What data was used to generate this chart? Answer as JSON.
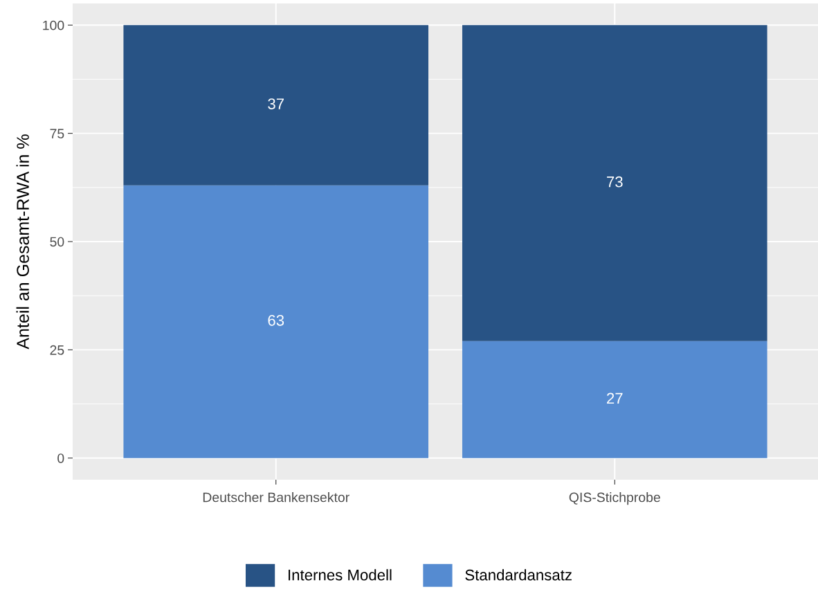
{
  "chart_data": {
    "type": "bar",
    "stacked": true,
    "ylabel": "Anteil an Gesamt-RWA in %",
    "categories": [
      "Deutscher Bankensektor",
      "QIS-Stichprobe"
    ],
    "series": [
      {
        "name": "Standardansatz",
        "color": "#558bd1",
        "values": [
          63,
          27
        ]
      },
      {
        "name": "Internes Modell",
        "color": "#285385",
        "values": [
          37,
          73
        ]
      }
    ],
    "ylim": [
      -5,
      105
    ],
    "yticks": [
      0,
      25,
      50,
      75,
      100
    ],
    "grid": true,
    "legend": "bottom",
    "data_labels": true
  }
}
